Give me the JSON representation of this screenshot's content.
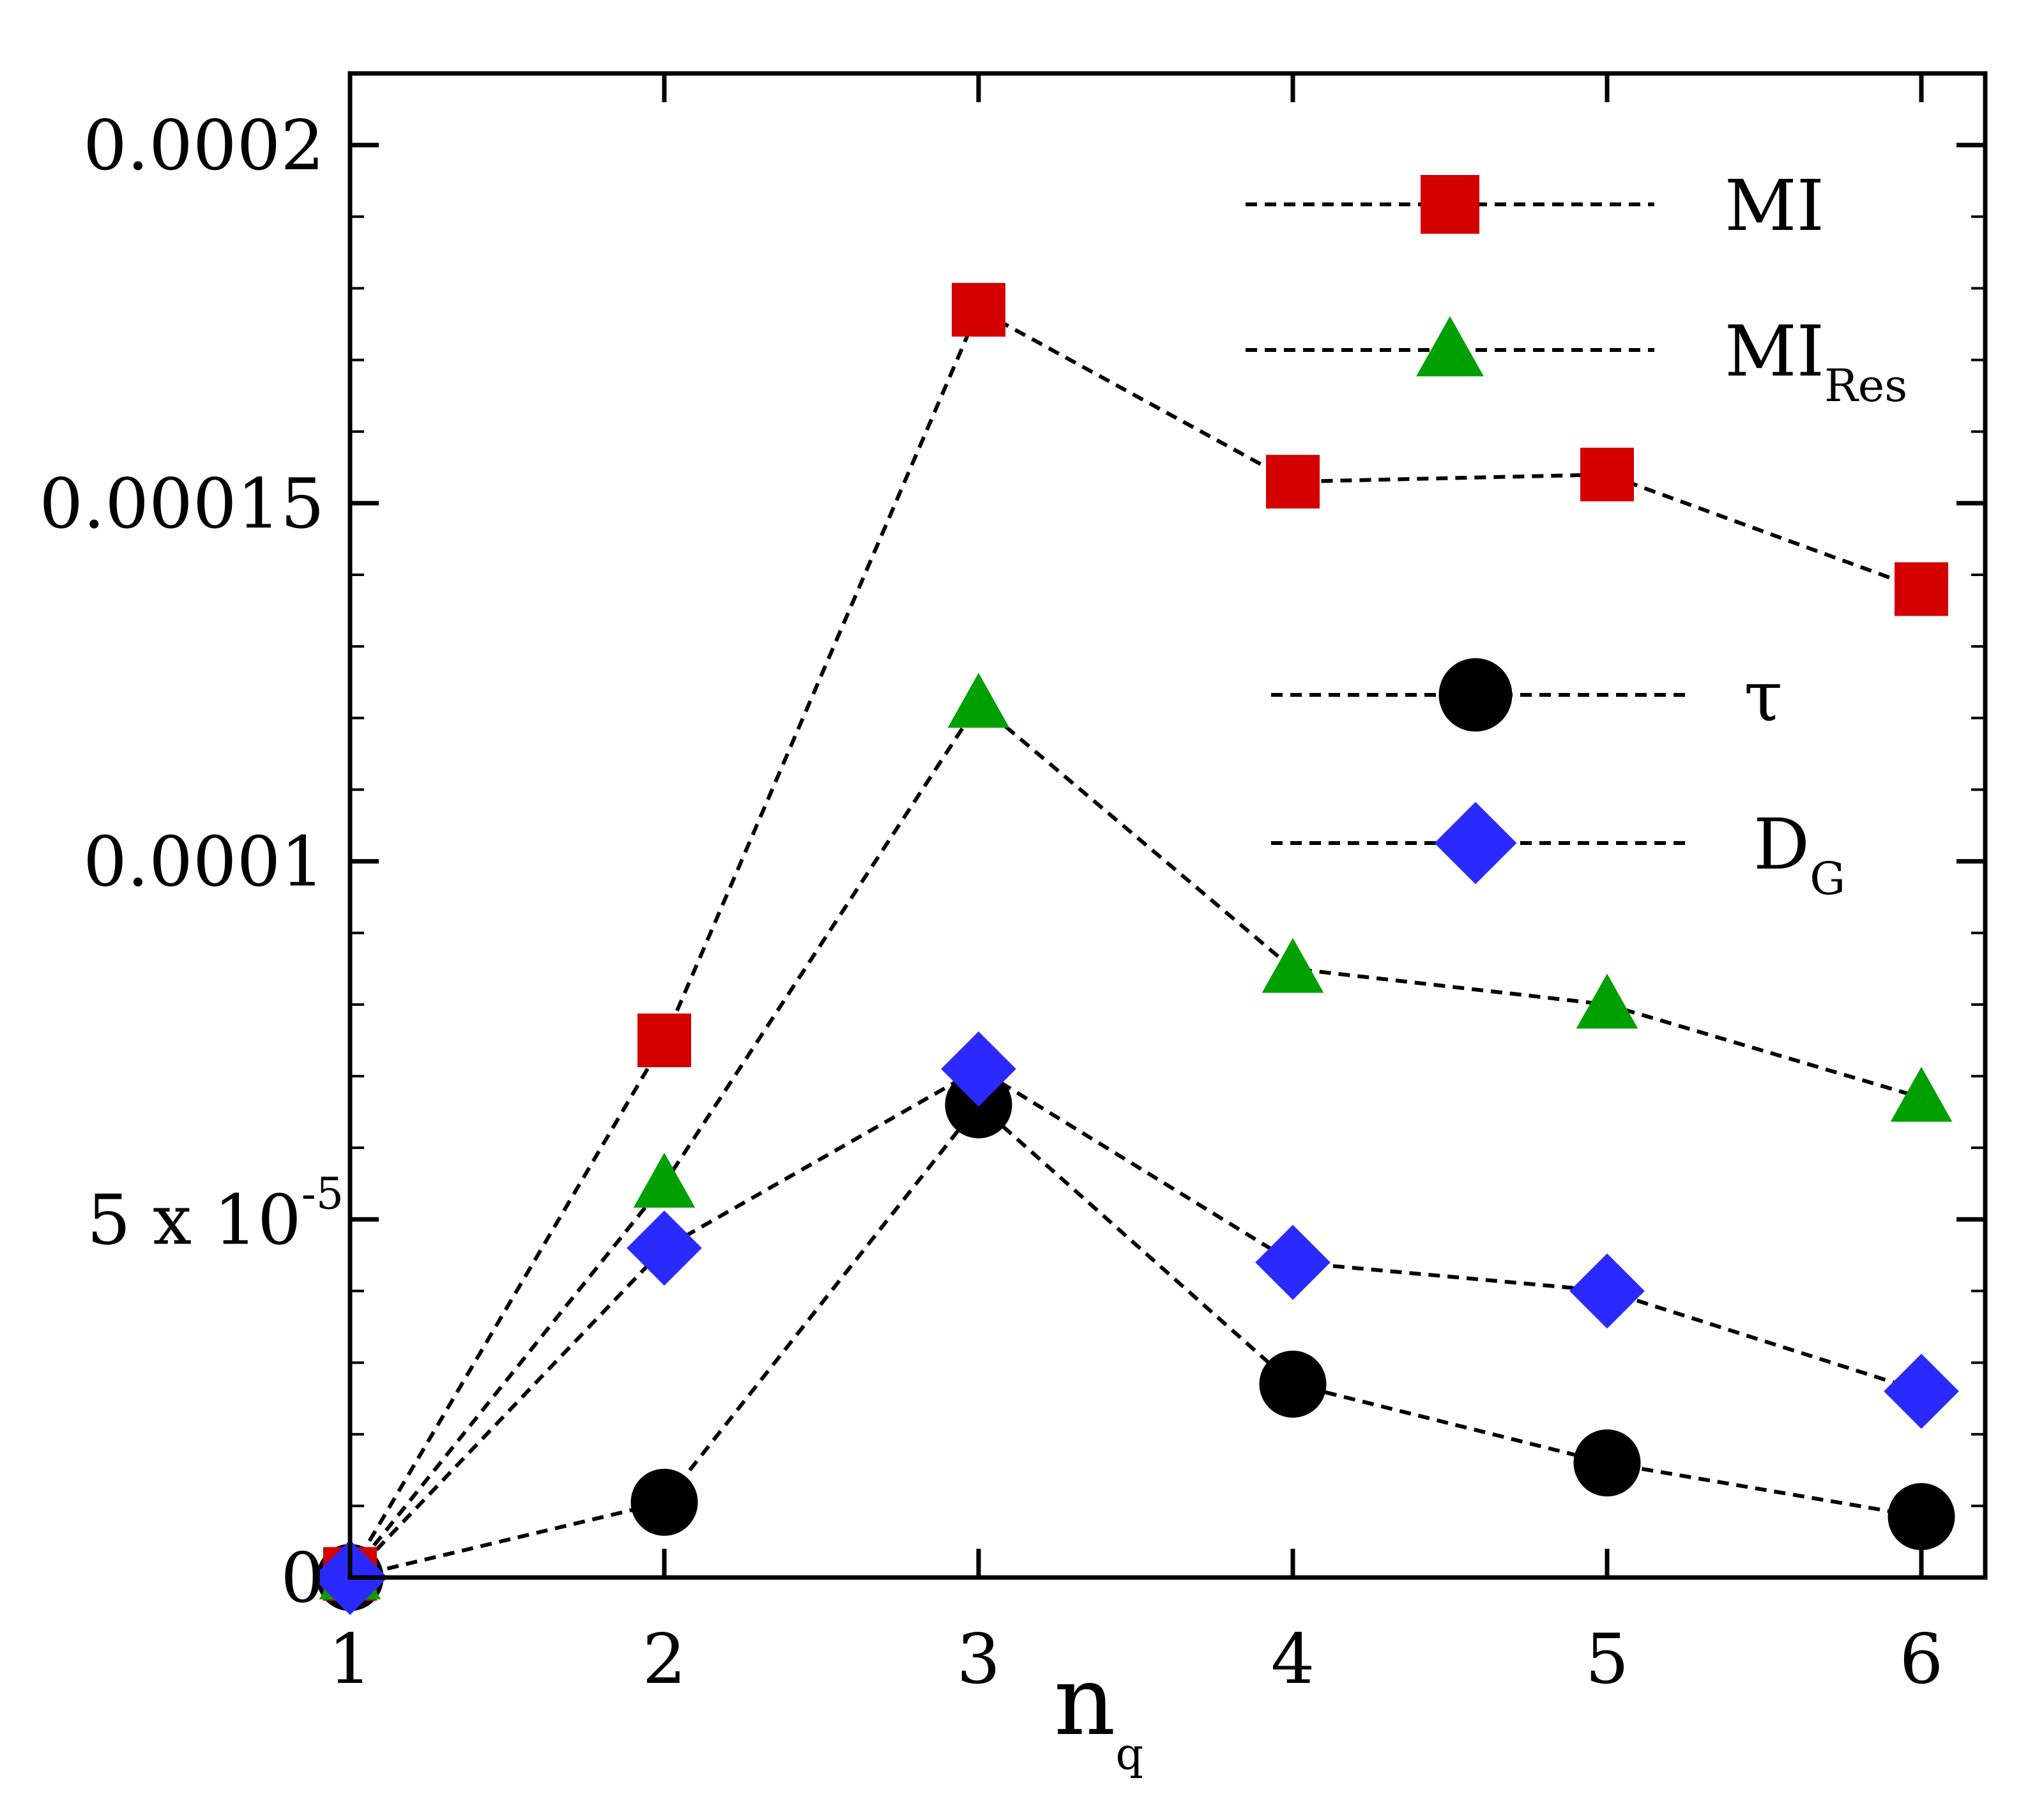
{
  "chart_data": {
    "type": "line",
    "title": "",
    "xlabel": {
      "main": "n",
      "sub": "q"
    },
    "ylabel": "",
    "x": [
      1,
      2,
      3,
      4,
      5,
      6
    ],
    "xlim": [
      1,
      6.2
    ],
    "ylim": [
      0,
      0.00021
    ],
    "x_ticks": [
      "1",
      "2",
      "3",
      "4",
      "5",
      "6"
    ],
    "y_ticks": [
      {
        "value": 0,
        "label": "0"
      },
      {
        "value": 5e-05,
        "label": "5 x 10",
        "sup": "-5"
      },
      {
        "value": 0.0001,
        "label": "0.0001"
      },
      {
        "value": 0.00015,
        "label": "0.00015"
      },
      {
        "value": 0.0002,
        "label": "0.0002"
      }
    ],
    "y_minor_step": 1e-05,
    "grid": false,
    "series": [
      {
        "name": "MI",
        "label_main": "MI",
        "label_sub": "",
        "marker": "square",
        "color": "#d40000",
        "values": [
          5e-07,
          7.5e-05,
          0.000177,
          0.000153,
          0.000154,
          0.000138
        ]
      },
      {
        "name": "MI_Res",
        "label_main": "MI",
        "label_sub": "Res",
        "marker": "triangle",
        "color": "#00a000",
        "values": [
          3e-07,
          5.5e-05,
          0.000122,
          8.5e-05,
          8e-05,
          6.7e-05
        ]
      },
      {
        "name": "tau",
        "label_main": "τ",
        "label_sub": "",
        "marker": "circle",
        "color": "#000000",
        "values": [
          0,
          1.05e-05,
          6.6e-05,
          2.7e-05,
          1.6e-05,
          8.5e-06
        ]
      },
      {
        "name": "D_G",
        "label_main": "D",
        "label_sub": "G",
        "marker": "diamond",
        "color": "#2a2aff",
        "values": [
          0,
          4.6e-05,
          7.1e-05,
          4.4e-05,
          4e-05,
          2.6e-05
        ]
      }
    ],
    "legend_position": "top-right"
  }
}
